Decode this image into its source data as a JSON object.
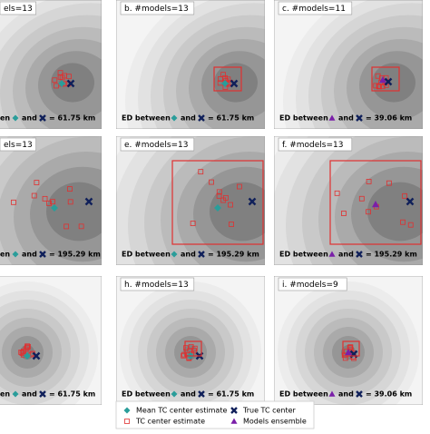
{
  "panels": [
    {
      "title": "els=13",
      "ed_prefix": "en",
      "ed_and": "and",
      "ed_value": "= 61.75 km"
    },
    {
      "title": "b. #models=13",
      "ed_prefix": "ED between",
      "ed_and": "and",
      "ed_value": "= 61.75 km"
    },
    {
      "title": "c. #models=11",
      "ed_prefix": "ED between",
      "ed_and": "and",
      "ed_value": "= 39.06 km"
    },
    {
      "title": "els=13",
      "ed_prefix": "en",
      "ed_and": "and",
      "ed_value": "= 195.29 km"
    },
    {
      "title": "e. #models=13",
      "ed_prefix": "ED between",
      "ed_and": "and",
      "ed_value": "= 195.29 km"
    },
    {
      "title": "f. #models=13",
      "ed_prefix": "ED between",
      "ed_and": "and",
      "ed_value": "= 195.29 km"
    },
    {
      "ed_prefix": "en",
      "ed_and": "and",
      "ed_value": "= 61.75 km"
    },
    {
      "title": "h. #models=13",
      "ed_prefix": "ED between",
      "ed_and": "and",
      "ed_value": "= 61.75 km"
    },
    {
      "title": "i. #models=9",
      "ed_prefix": "ED between",
      "ed_and": "and",
      "ed_value": "= 39.06 km"
    }
  ],
  "legend": {
    "mean": "Mean TC center estimate",
    "true": "True TC center",
    "estimate": "TC center estimate",
    "ensemble": "Models ensemble"
  }
}
